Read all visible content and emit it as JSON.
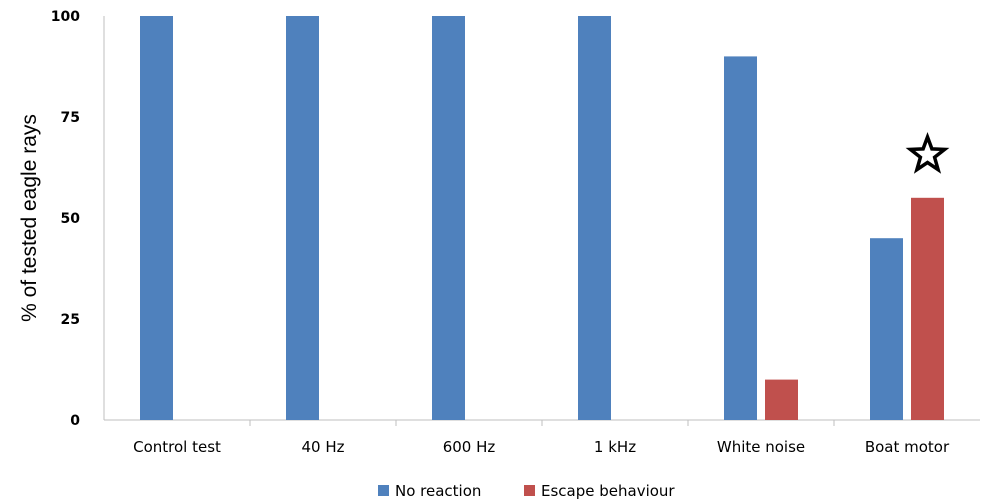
{
  "chart_data": {
    "type": "bar",
    "categories": [
      "Control test",
      "40 Hz",
      "600 Hz",
      "1 kHz",
      "White noise",
      "Boat motor"
    ],
    "series": [
      {
        "name": "No reaction",
        "values": [
          100,
          100,
          100,
          100,
          90,
          45
        ],
        "color": "#4f81bd"
      },
      {
        "name": "Escape behaviour",
        "values": [
          0,
          0,
          0,
          0,
          10,
          55
        ],
        "color": "#c0504d"
      }
    ],
    "ylabel": "% of tested eagle rays",
    "xlabel": "",
    "ylim": [
      0,
      100
    ],
    "yticks": [
      "0",
      "25",
      "50",
      "75",
      "100"
    ],
    "yticks_values": [
      0,
      25,
      50,
      75,
      100
    ],
    "legend_position": "bottom",
    "grid": false,
    "annotation": {
      "type": "star-icon",
      "category": "Boat motor",
      "series": "Escape behaviour"
    }
  }
}
